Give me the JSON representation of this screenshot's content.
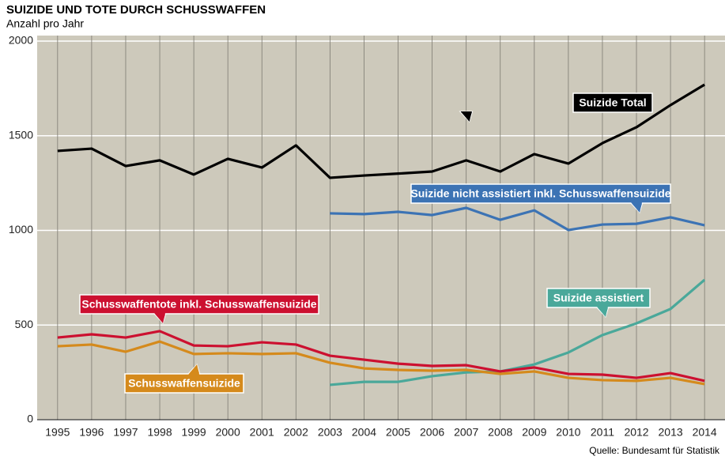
{
  "chart_data": {
    "type": "line",
    "title": "SUIZIDE UND TOTE DURCH SCHUSSWAFFEN",
    "subtitle": "Anzahl pro Jahr",
    "source": "Quelle: Bundesamt für Statistik",
    "x": [
      1995,
      1996,
      1997,
      1998,
      1999,
      2000,
      2001,
      2002,
      2003,
      2004,
      2005,
      2006,
      2007,
      2008,
      2009,
      2010,
      2011,
      2012,
      2013,
      2014
    ],
    "xlim": [
      1994.4,
      2014.6
    ],
    "ylim": [
      0,
      2000
    ],
    "yticks": [
      0,
      500,
      1000,
      1500,
      2000
    ],
    "grid": true,
    "series": [
      {
        "name": "Suizide Total",
        "color": "#000000",
        "values": [
          1420,
          1432,
          1340,
          1370,
          1295,
          1378,
          1332,
          1449,
          1278,
          1290,
          1300,
          1311,
          1370,
          1311,
          1403,
          1353,
          1461,
          1545,
          1662,
          1770
        ]
      },
      {
        "name": "Suizide nicht assistiert inkl. Schusswaffensuizide",
        "color": "#3c73b4",
        "values": [
          null,
          null,
          null,
          null,
          null,
          null,
          null,
          null,
          1090,
          1086,
          1098,
          1081,
          1119,
          1056,
          1106,
          1002,
          1031,
          1035,
          1069,
          1027
        ]
      },
      {
        "name": "Suizide assistiert",
        "color": "#4aa89a",
        "values": [
          null,
          null,
          null,
          null,
          null,
          null,
          null,
          null,
          184,
          200,
          200,
          230,
          250,
          255,
          292,
          355,
          447,
          509,
          585,
          739
        ]
      },
      {
        "name": "Schusswaffentote inkl. Schusswaffensuizide",
        "color": "#cc1030",
        "values": [
          434,
          451,
          434,
          468,
          392,
          388,
          409,
          397,
          338,
          317,
          296,
          284,
          288,
          255,
          276,
          242,
          238,
          221,
          246,
          205
        ]
      },
      {
        "name": "Schusswaffensuizide",
        "color": "#d58a1c",
        "values": [
          388,
          397,
          359,
          413,
          347,
          351,
          347,
          351,
          301,
          271,
          263,
          259,
          263,
          242,
          255,
          221,
          209,
          205,
          221,
          188
        ]
      }
    ]
  }
}
